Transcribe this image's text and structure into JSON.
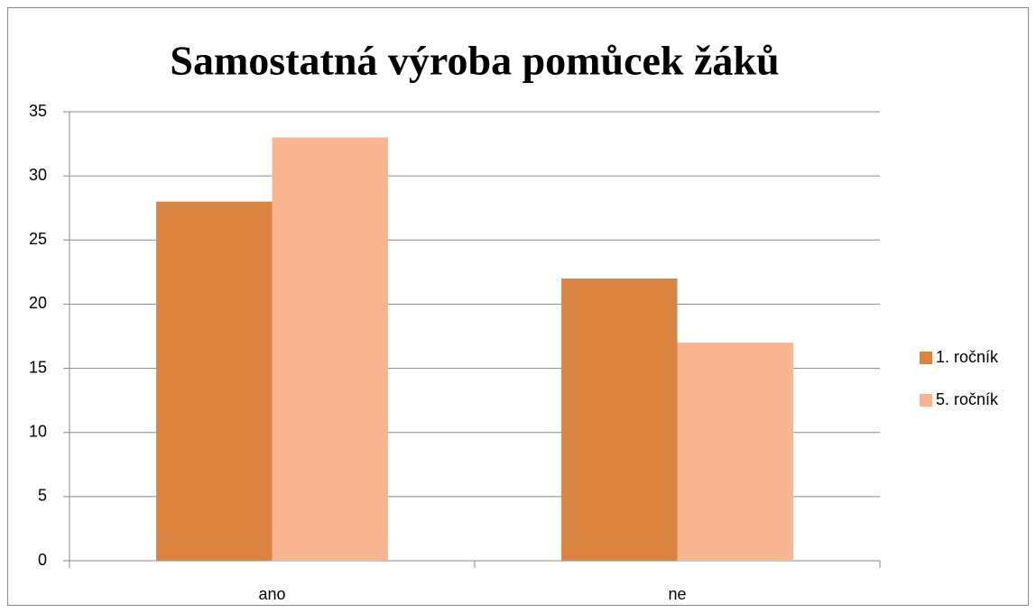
{
  "chart_data": {
    "type": "bar",
    "title": "Samostatná výroba pomůcek žáků",
    "categories": [
      "ano",
      "ne"
    ],
    "series": [
      {
        "name": "1. ročník",
        "color": "#db8440",
        "values": [
          28,
          22
        ]
      },
      {
        "name": "5. ročník",
        "color": "#f8b590",
        "values": [
          33,
          17
        ]
      }
    ],
    "ylim": [
      0,
      35
    ],
    "yticks": [
      0,
      5,
      10,
      15,
      20,
      25,
      30,
      35
    ],
    "grid": true,
    "legend": "right"
  }
}
